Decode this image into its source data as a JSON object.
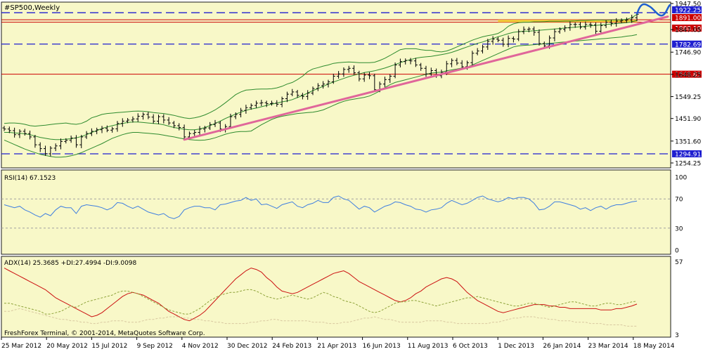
{
  "symbol_label": "#SP500,Weekly",
  "copyright": "FreshForex Terminal, © 2001-2014, MetaQuotes Software Corp.",
  "colors": {
    "background": "#F8F8C8",
    "frame": "#1A1A1A",
    "candle": "#000000",
    "bollinger": "#2E8B2E",
    "trendline": "#E0669A",
    "blue_level": "#1F1FD0",
    "red_level": "#CC0000",
    "yellow_zone": "#F2D21A",
    "forecast": "#1F5FD0",
    "rsi_line": "#3F7FE0",
    "adx_line": "#CC1111",
    "plus_di": "#8FA33B",
    "minus_di": "#D8C8A0"
  },
  "chart_data": [
    {
      "type": "candlestick",
      "name": "price",
      "title": "#SP500,Weekly",
      "ylim": [
        1254.25,
        1947.5
      ],
      "y_ticks": [
        "1947.50",
        "1922.25",
        "1891.00",
        "1880.10",
        "1847.05",
        "1782.69",
        "1746.90",
        "1648.85",
        "1648.25",
        "1549.25",
        "1451.90",
        "1351.60",
        "1294.91",
        "1254.25"
      ],
      "x_ticks": [
        "25 Mar 2012",
        "20 May 2012",
        "15 Jul 2012",
        "9 Sep 2012",
        "4 Nov 2012",
        "30 Dec 2012",
        "24 Feb 2013",
        "21 Apr 2013",
        "16 Jun 2013",
        "11 Aug 2013",
        "6 Oct 2013",
        "1 Dec 2013",
        "26 Jan 2014",
        "23 Mar 2014",
        "18 May 2014"
      ],
      "close": [
        1405,
        1398,
        1380,
        1395,
        1385,
        1370,
        1335,
        1318,
        1295,
        1320,
        1330,
        1350,
        1355,
        1365,
        1335,
        1370,
        1385,
        1395,
        1402,
        1408,
        1400,
        1406,
        1430,
        1440,
        1445,
        1450,
        1462,
        1470,
        1458,
        1440,
        1460,
        1445,
        1432,
        1420,
        1412,
        1370,
        1385,
        1390,
        1405,
        1410,
        1425,
        1432,
        1405,
        1416,
        1460,
        1470,
        1488,
        1500,
        1510,
        1520,
        1522,
        1518,
        1520,
        1515,
        1540,
        1560,
        1570,
        1555,
        1550,
        1565,
        1585,
        1598,
        1605,
        1615,
        1640,
        1650,
        1670,
        1675,
        1655,
        1628,
        1645,
        1642,
        1580,
        1605,
        1625,
        1640,
        1690,
        1705,
        1710,
        1708,
        1690,
        1675,
        1650,
        1665,
        1642,
        1658,
        1695,
        1710,
        1698,
        1682,
        1700,
        1742,
        1752,
        1770,
        1795,
        1805,
        1800,
        1782,
        1808,
        1805,
        1838,
        1848,
        1850,
        1835,
        1785,
        1775,
        1810,
        1838,
        1848,
        1855,
        1870,
        1870,
        1858,
        1870,
        1868,
        1840,
        1865,
        1880,
        1875,
        1885,
        1888,
        1890,
        1900,
        1915
      ],
      "bollinger_upper": [
        1430,
        1432,
        1432,
        1430,
        1426,
        1420,
        1418,
        1420,
        1422,
        1425,
        1428,
        1430,
        1432,
        1428,
        1426,
        1430,
        1440,
        1455,
        1462,
        1470,
        1474,
        1476,
        1478,
        1480,
        1482,
        1484,
        1485,
        1484,
        1482,
        1478,
        1476,
        1474,
        1470,
        1466,
        1460,
        1455,
        1452,
        1455,
        1460,
        1468,
        1478,
        1490,
        1505,
        1522,
        1540,
        1558,
        1570,
        1578,
        1580,
        1582,
        1583,
        1583,
        1584,
        1588,
        1595,
        1605,
        1612,
        1625,
        1640,
        1660,
        1672,
        1678,
        1685,
        1690,
        1697,
        1700,
        1702,
        1703,
        1702,
        1700,
        1700,
        1700,
        1702,
        1710,
        1720,
        1732,
        1745,
        1758,
        1762,
        1762,
        1762,
        1758,
        1755,
        1755,
        1750,
        1748,
        1752,
        1760,
        1770,
        1780,
        1790,
        1800,
        1808,
        1815,
        1820,
        1824,
        1830,
        1843,
        1862,
        1873,
        1878,
        1880,
        1880,
        1882,
        1882,
        1883,
        1884,
        1884,
        1884,
        1885,
        1885,
        1886,
        1888,
        1888,
        1889,
        1890,
        1890,
        1889,
        1890,
        1890,
        1891,
        1893,
        1900,
        1915
      ],
      "bollinger_middle": [
        1390,
        1390,
        1388,
        1386,
        1384,
        1380,
        1374,
        1368,
        1364,
        1360,
        1358,
        1358,
        1360,
        1362,
        1366,
        1372,
        1380,
        1390,
        1398,
        1408,
        1414,
        1420,
        1425,
        1430,
        1434,
        1436,
        1436,
        1434,
        1432,
        1430,
        1428,
        1424,
        1418,
        1412,
        1408,
        1404,
        1402,
        1402,
        1405,
        1412,
        1420,
        1430,
        1440,
        1452,
        1462,
        1472,
        1480,
        1488,
        1494,
        1498,
        1504,
        1510,
        1516,
        1520,
        1526,
        1530,
        1536,
        1545,
        1554,
        1565,
        1576,
        1585,
        1595,
        1605,
        1614,
        1622,
        1630,
        1638,
        1644,
        1650,
        1656,
        1660,
        1664,
        1670,
        1676,
        1684,
        1692,
        1700,
        1708,
        1714,
        1720,
        1724,
        1726,
        1728,
        1732,
        1736,
        1740,
        1746,
        1754,
        1762,
        1770,
        1778,
        1786,
        1792,
        1800,
        1808,
        1815,
        1822,
        1829,
        1835,
        1838,
        1840,
        1840,
        1842,
        1844,
        1846,
        1848,
        1850,
        1852,
        1854,
        1856,
        1858,
        1860,
        1862,
        1864,
        1866,
        1868,
        1870,
        1872,
        1874,
        1876,
        1878,
        1882,
        1888
      ],
      "bollinger_lower": [
        1356,
        1346,
        1336,
        1326,
        1316,
        1308,
        1300,
        1293,
        1288,
        1283,
        1280,
        1280,
        1282,
        1286,
        1292,
        1300,
        1310,
        1320,
        1330,
        1340,
        1352,
        1364,
        1372,
        1380,
        1386,
        1390,
        1390,
        1388,
        1386,
        1384,
        1382,
        1378,
        1374,
        1370,
        1365,
        1361,
        1358,
        1356,
        1355,
        1356,
        1360,
        1366,
        1374,
        1382,
        1388,
        1392,
        1394,
        1394,
        1396,
        1410,
        1424,
        1436,
        1448,
        1456,
        1462,
        1466,
        1470,
        1474,
        1476,
        1478,
        1480,
        1484,
        1490,
        1500,
        1510,
        1520,
        1528,
        1534,
        1538,
        1542,
        1546,
        1552,
        1562,
        1574,
        1590,
        1602,
        1612,
        1618,
        1624,
        1630,
        1636,
        1642,
        1648,
        1654,
        1656,
        1658,
        1664,
        1668,
        1672,
        1676,
        1680,
        1690,
        1700,
        1710,
        1720,
        1730,
        1740,
        1750,
        1760,
        1770,
        1775,
        1777,
        1778,
        1780,
        1782,
        1784,
        1786,
        1788,
        1790,
        1792,
        1794,
        1796,
        1798,
        1800,
        1802,
        1804,
        1806,
        1808,
        1810,
        1812,
        1814,
        1818,
        1820,
        1825
      ],
      "levels": [
        {
          "value": 1922.25,
          "label": "1922.25",
          "style": "dashed",
          "color": "blue"
        },
        {
          "value": 1891.0,
          "label": "1891.00",
          "style": "solid",
          "color": "red"
        },
        {
          "value": 1880.1,
          "label": "1880.10",
          "style": "solid",
          "color": "red"
        },
        {
          "value": 1782.69,
          "label": "1782.69",
          "style": "dashed",
          "color": "blue"
        },
        {
          "value": 1648.85,
          "label": "1648.85",
          "style": "solid",
          "color": "red"
        },
        {
          "value": 1294.91,
          "label": "1294.91",
          "style": "dashed",
          "color": "blue"
        }
      ],
      "trendline": {
        "from": [
          35,
          1358
        ],
        "to": [
          123,
          1880
        ]
      },
      "forecast_label": "forecast"
    },
    {
      "type": "line",
      "name": "rsi",
      "title": "RSI(14) 67.1523",
      "ylim": [
        0,
        100
      ],
      "y_ticks": [
        "100",
        "70",
        "30",
        "0"
      ],
      "levels": [
        70,
        30
      ],
      "values": [
        62,
        60,
        58,
        60,
        55,
        52,
        48,
        45,
        50,
        47,
        55,
        60,
        58,
        58,
        50,
        60,
        62,
        61,
        60,
        58,
        55,
        58,
        65,
        64,
        60,
        57,
        60,
        56,
        52,
        50,
        48,
        50,
        45,
        43,
        46,
        55,
        58,
        60,
        60,
        58,
        58,
        55,
        62,
        63,
        65,
        67,
        68,
        72,
        68,
        70,
        62,
        63,
        60,
        57,
        62,
        64,
        66,
        60,
        58,
        62,
        64,
        68,
        65,
        65,
        72,
        74,
        70,
        68,
        62,
        56,
        60,
        58,
        52,
        56,
        60,
        62,
        66,
        65,
        62,
        60,
        56,
        55,
        52,
        55,
        56,
        58,
        64,
        68,
        65,
        62,
        64,
        68,
        72,
        74,
        70,
        68,
        66,
        68,
        72,
        70,
        72,
        72,
        70,
        64,
        55,
        56,
        60,
        66,
        66,
        64,
        62,
        60,
        56,
        58,
        54,
        58,
        60,
        56,
        60,
        62,
        62,
        64,
        66,
        67.15
      ]
    },
    {
      "type": "line",
      "name": "adx",
      "title": "ADX(14) 25.3685 +DI:27.4994 -DI:9.0098",
      "ylim": [
        3,
        57
      ],
      "y_ticks": [
        "57",
        "3"
      ],
      "series": [
        {
          "name": "ADX",
          "values": [
            52,
            50,
            48,
            46,
            44,
            42,
            40,
            38,
            36,
            33,
            30,
            28,
            26,
            24,
            22,
            20,
            18,
            16,
            17,
            19,
            22,
            25,
            28,
            31,
            33,
            34,
            33,
            32,
            30,
            28,
            26,
            23,
            20,
            18,
            16,
            14,
            13,
            15,
            17,
            20,
            24,
            28,
            32,
            36,
            40,
            44,
            47,
            50,
            52,
            51,
            49,
            45,
            42,
            38,
            35,
            34,
            33,
            34,
            36,
            38,
            40,
            42,
            44,
            46,
            48,
            49,
            50,
            48,
            45,
            42,
            40,
            38,
            36,
            34,
            32,
            30,
            28,
            27,
            28,
            30,
            33,
            35,
            38,
            40,
            42,
            44,
            45,
            44,
            42,
            38,
            34,
            31,
            28,
            26,
            24,
            22,
            20,
            19,
            20,
            21,
            22,
            23,
            24,
            25,
            25,
            25,
            24,
            24,
            23,
            23,
            22,
            22,
            22,
            22,
            22,
            22,
            21,
            21,
            21,
            22,
            22,
            23,
            24,
            25.37
          ]
        },
        {
          "name": "+DI",
          "values": [
            26,
            26,
            25,
            24,
            23,
            22,
            21,
            20,
            18,
            18,
            19,
            20,
            22,
            24,
            23,
            25,
            27,
            28,
            29,
            30,
            31,
            32,
            34,
            35,
            35,
            34,
            33,
            31,
            29,
            27,
            25,
            23,
            21,
            20,
            19,
            18,
            18,
            20,
            22,
            25,
            28,
            30,
            32,
            33,
            34,
            34,
            35,
            36,
            36,
            35,
            33,
            31,
            30,
            29,
            30,
            31,
            32,
            31,
            30,
            29,
            30,
            32,
            34,
            33,
            31,
            30,
            28,
            27,
            26,
            24,
            22,
            20,
            19,
            20,
            22,
            24,
            26,
            27,
            27,
            28,
            28,
            27,
            26,
            25,
            24,
            25,
            26,
            27,
            28,
            29,
            30,
            30,
            31,
            30,
            29,
            28,
            27,
            26,
            25,
            24,
            24,
            25,
            26,
            26,
            25,
            24,
            23,
            24,
            25,
            26,
            27,
            27,
            26,
            25,
            24,
            24,
            25,
            26,
            26,
            25,
            25,
            26,
            27,
            27.5
          ]
        },
        {
          "name": "-DI",
          "values": [
            20,
            20,
            21,
            22,
            21,
            20,
            19,
            18,
            17,
            16,
            15,
            14,
            14,
            13,
            13,
            12,
            12,
            11,
            11,
            12,
            12,
            13,
            13,
            13,
            12,
            12,
            12,
            13,
            14,
            14,
            15,
            15,
            16,
            16,
            16,
            15,
            15,
            14,
            14,
            13,
            13,
            12,
            12,
            11,
            11,
            11,
            11,
            11,
            12,
            12,
            13,
            13,
            14,
            14,
            13,
            13,
            13,
            13,
            13,
            13,
            12,
            12,
            12,
            11,
            11,
            11,
            12,
            12,
            13,
            14,
            15,
            15,
            16,
            15,
            14,
            14,
            13,
            12,
            12,
            12,
            12,
            12,
            13,
            13,
            13,
            13,
            12,
            12,
            11,
            11,
            11,
            11,
            11,
            11,
            11,
            12,
            12,
            13,
            14,
            15,
            15,
            16,
            16,
            16,
            15,
            15,
            14,
            14,
            13,
            13,
            13,
            12,
            12,
            12,
            11,
            11,
            11,
            10,
            10,
            10,
            10,
            9,
            9,
            9.01
          ]
        }
      ]
    }
  ]
}
